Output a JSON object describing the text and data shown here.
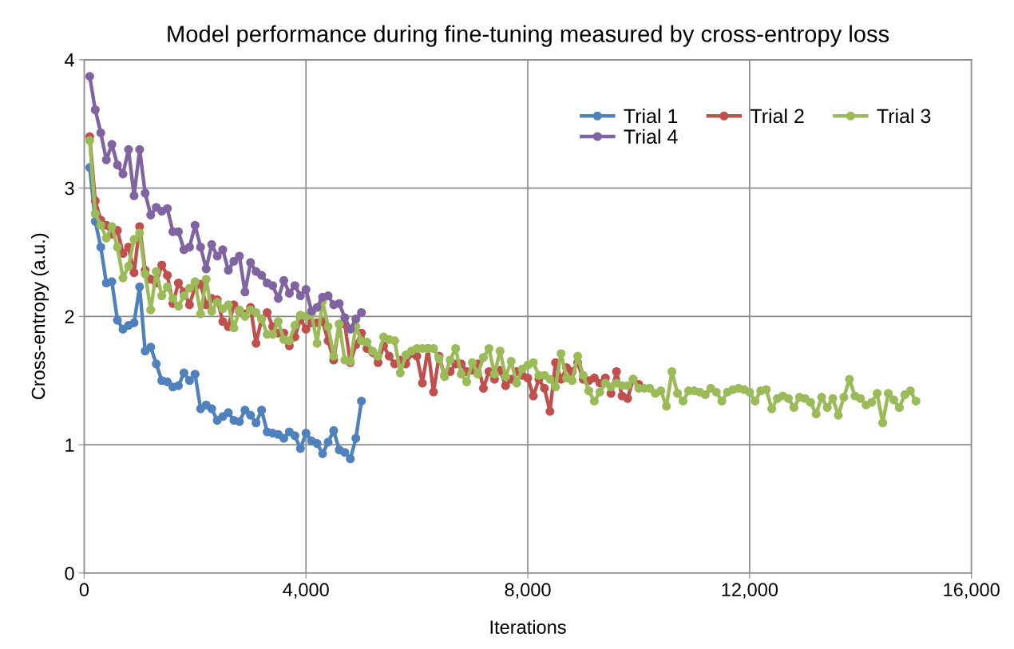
{
  "chart_data": {
    "type": "line",
    "title": "Model performance during fine-tuning measured by cross-entropy loss",
    "xlabel": "Iterations",
    "ylabel": "Cross-entropy (a.u.)",
    "xlim": [
      0,
      16000
    ],
    "xticks": [
      0,
      {
        "value": 4000,
        "label": "4,000"
      },
      {
        "value": 8000,
        "label": "8,000"
      },
      {
        "value": 12000,
        "label": "12,000"
      },
      {
        "value": 16000,
        "label": "16,000"
      }
    ],
    "ylim": [
      0,
      4
    ],
    "yticks": [
      0,
      1,
      2,
      3,
      4
    ],
    "grid": true,
    "legend": "top right",
    "marker": "circle",
    "line_style": "solid",
    "series": [
      {
        "name": "Trial 1",
        "color": "#4f81bd",
        "x": [
          100,
          200,
          300,
          400,
          500,
          600,
          700,
          800,
          900,
          1000,
          1100,
          1200,
          1300,
          1400,
          1500,
          1600,
          1700,
          1800,
          1900,
          2000,
          2100,
          2200,
          2300,
          2400,
          2500,
          2600,
          2700,
          2800,
          2900,
          3000,
          3100,
          3200,
          3300,
          3400,
          3500,
          3600,
          3700,
          3800,
          3900,
          4000,
          4100,
          4200,
          4300,
          4400,
          4500,
          4600,
          4700,
          4800,
          4900,
          5000
        ],
        "values": [
          3.16,
          2.74,
          2.54,
          2.26,
          2.27,
          1.97,
          1.9,
          1.93,
          1.95,
          2.23,
          1.73,
          1.76,
          1.63,
          1.5,
          1.49,
          1.45,
          1.46,
          1.56,
          1.5,
          1.55,
          1.28,
          1.31,
          1.28,
          1.19,
          1.22,
          1.25,
          1.19,
          1.18,
          1.27,
          1.23,
          1.17,
          1.27,
          1.1,
          1.09,
          1.08,
          1.05,
          1.1,
          1.07,
          0.97,
          1.09,
          1.03,
          1.01,
          0.93,
          1.02,
          1.11,
          0.96,
          0.94,
          0.89,
          1.05,
          1.34
        ]
      },
      {
        "name": "Trial 2",
        "color": "#c0504d",
        "x": [
          100,
          200,
          300,
          400,
          500,
          600,
          700,
          800,
          900,
          1000,
          1100,
          1200,
          1300,
          1400,
          1500,
          1600,
          1700,
          1800,
          1900,
          2000,
          2100,
          2200,
          2300,
          2400,
          2500,
          2600,
          2700,
          2800,
          2900,
          3000,
          3100,
          3200,
          3300,
          3400,
          3500,
          3600,
          3700,
          3800,
          3900,
          4000,
          4100,
          4200,
          4300,
          4400,
          4500,
          4600,
          4700,
          4800,
          4900,
          5000,
          5100,
          5200,
          5300,
          5400,
          5500,
          5600,
          5700,
          5800,
          5900,
          6000,
          6100,
          6200,
          6300,
          6400,
          6500,
          6600,
          6700,
          6800,
          6900,
          7000,
          7100,
          7200,
          7300,
          7400,
          7500,
          7600,
          7700,
          7800,
          7900,
          8000,
          8100,
          8200,
          8300,
          8400,
          8500,
          8600,
          8700,
          8800,
          8900,
          9000,
          9100,
          9200,
          9300,
          9400,
          9500,
          9600,
          9700,
          9800,
          9900,
          10000
        ],
        "values": [
          3.4,
          2.9,
          2.75,
          2.71,
          2.64,
          2.67,
          2.49,
          2.54,
          2.34,
          2.7,
          2.36,
          2.29,
          2.26,
          2.4,
          2.32,
          2.1,
          2.26,
          2.19,
          2.09,
          2.23,
          2.25,
          2.09,
          2.14,
          2.13,
          1.96,
          1.92,
          2.09,
          2.04,
          2.02,
          2.07,
          1.79,
          1.98,
          2.03,
          1.92,
          1.87,
          1.87,
          1.77,
          1.84,
          1.98,
          1.9,
          1.95,
          1.95,
          1.96,
          1.81,
          1.66,
          1.94,
          1.94,
          1.64,
          1.78,
          1.87,
          1.75,
          1.72,
          1.64,
          1.77,
          1.69,
          1.63,
          1.66,
          1.63,
          1.71,
          1.69,
          1.48,
          1.75,
          1.41,
          1.69,
          1.54,
          1.57,
          1.63,
          1.63,
          1.57,
          1.58,
          1.63,
          1.44,
          1.57,
          1.51,
          1.58,
          1.46,
          1.51,
          1.57,
          1.54,
          1.52,
          1.38,
          1.51,
          1.44,
          1.26,
          1.64,
          1.51,
          1.6,
          1.57,
          1.64,
          1.51,
          1.5,
          1.52,
          1.48,
          1.52,
          1.4,
          1.57,
          1.38,
          1.36,
          1.51,
          1.47
        ]
      },
      {
        "name": "Trial 3",
        "color": "#9bbb59",
        "x": [
          100,
          200,
          300,
          400,
          500,
          600,
          700,
          800,
          900,
          1000,
          1100,
          1200,
          1300,
          1400,
          1500,
          1600,
          1700,
          1800,
          1900,
          2000,
          2100,
          2200,
          2300,
          2400,
          2500,
          2600,
          2700,
          2800,
          2900,
          3000,
          3100,
          3200,
          3300,
          3400,
          3500,
          3600,
          3700,
          3800,
          3900,
          4000,
          4100,
          4200,
          4300,
          4400,
          4500,
          4600,
          4700,
          4800,
          4900,
          5000,
          5100,
          5200,
          5300,
          5400,
          5500,
          5600,
          5700,
          5800,
          5900,
          6000,
          6100,
          6200,
          6300,
          6400,
          6500,
          6600,
          6700,
          6800,
          6900,
          7000,
          7100,
          7200,
          7300,
          7400,
          7500,
          7600,
          7700,
          7800,
          7900,
          8000,
          8100,
          8200,
          8300,
          8400,
          8500,
          8600,
          8700,
          8800,
          8900,
          9000,
          9100,
          9200,
          9300,
          9400,
          9500,
          9600,
          9700,
          9800,
          9900,
          10000,
          10100,
          10200,
          10300,
          10400,
          10500,
          10600,
          10700,
          10800,
          10900,
          11000,
          11100,
          11200,
          11300,
          11400,
          11500,
          11600,
          11700,
          11800,
          11900,
          12000,
          12100,
          12200,
          12300,
          12400,
          12500,
          12600,
          12700,
          12800,
          12900,
          13000,
          13100,
          13200,
          13300,
          13400,
          13500,
          13600,
          13700,
          13800,
          13900,
          14000,
          14100,
          14200,
          14300,
          14400,
          14500,
          14600,
          14700,
          14800,
          14900,
          15000
        ],
        "values": [
          3.37,
          2.8,
          2.71,
          2.61,
          2.7,
          2.54,
          2.3,
          2.39,
          2.6,
          2.65,
          2.33,
          2.05,
          2.35,
          2.16,
          2.23,
          2.14,
          2.08,
          2.16,
          2.22,
          2.27,
          2.02,
          2.29,
          2.04,
          2.11,
          2.06,
          2.09,
          1.91,
          2.05,
          2.0,
          2.05,
          2.03,
          1.98,
          1.86,
          1.86,
          1.96,
          1.82,
          1.81,
          1.93,
          2.01,
          2.0,
          2.02,
          1.79,
          2.12,
          1.92,
          1.69,
          1.94,
          1.66,
          1.65,
          1.92,
          1.81,
          1.8,
          1.73,
          1.69,
          1.84,
          1.82,
          1.81,
          1.56,
          1.7,
          1.73,
          1.75,
          1.75,
          1.75,
          1.75,
          1.67,
          1.53,
          1.66,
          1.75,
          1.55,
          1.49,
          1.64,
          1.55,
          1.68,
          1.75,
          1.55,
          1.73,
          1.53,
          1.65,
          1.48,
          1.59,
          1.62,
          1.64,
          1.54,
          1.54,
          1.51,
          1.45,
          1.71,
          1.52,
          1.5,
          1.69,
          1.54,
          1.42,
          1.34,
          1.41,
          1.48,
          1.45,
          1.48,
          1.46,
          1.46,
          1.51,
          1.44,
          1.44,
          1.44,
          1.4,
          1.42,
          1.3,
          1.57,
          1.4,
          1.34,
          1.42,
          1.42,
          1.41,
          1.39,
          1.44,
          1.41,
          1.34,
          1.41,
          1.43,
          1.44,
          1.43,
          1.41,
          1.34,
          1.42,
          1.43,
          1.28,
          1.36,
          1.38,
          1.36,
          1.29,
          1.37,
          1.36,
          1.33,
          1.24,
          1.37,
          1.29,
          1.36,
          1.23,
          1.37,
          1.51,
          1.38,
          1.36,
          1.31,
          1.33,
          1.4,
          1.17,
          1.4,
          1.35,
          1.29,
          1.39,
          1.42,
          1.34
        ]
      },
      {
        "name": "Trial 4",
        "color": "#8064a2",
        "x": [
          100,
          200,
          300,
          400,
          500,
          600,
          700,
          800,
          900,
          1000,
          1100,
          1200,
          1300,
          1400,
          1500,
          1600,
          1700,
          1800,
          1900,
          2000,
          2100,
          2200,
          2300,
          2400,
          2500,
          2600,
          2700,
          2800,
          2900,
          3000,
          3100,
          3200,
          3300,
          3400,
          3500,
          3600,
          3700,
          3800,
          3900,
          4000,
          4100,
          4200,
          4300,
          4400,
          4500,
          4600,
          4700,
          4800,
          4900,
          5000
        ],
        "values": [
          3.87,
          3.61,
          3.43,
          3.22,
          3.34,
          3.18,
          3.11,
          3.3,
          2.94,
          3.3,
          2.96,
          2.79,
          2.85,
          2.82,
          2.84,
          2.66,
          2.66,
          2.52,
          2.54,
          2.71,
          2.54,
          2.37,
          2.56,
          2.47,
          2.52,
          2.36,
          2.43,
          2.47,
          2.19,
          2.42,
          2.35,
          2.32,
          2.26,
          2.24,
          2.14,
          2.28,
          2.18,
          2.24,
          2.16,
          2.21,
          2.04,
          2.07,
          2.15,
          2.16,
          2.09,
          2.1,
          1.99,
          1.9,
          1.98,
          2.03
        ]
      }
    ]
  }
}
